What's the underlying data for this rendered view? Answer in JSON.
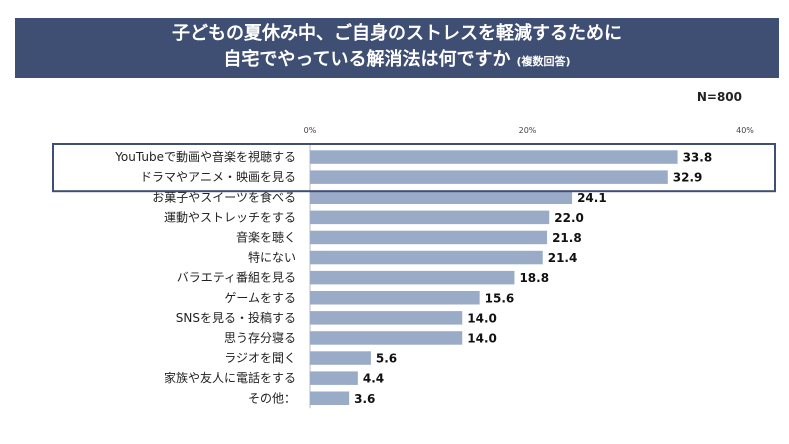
{
  "title": {
    "line1": "子どもの夏休み中、ご自身のストレスを軽減するために",
    "line2": "自宅でやっている解消法は何ですか",
    "note": "(複数回答)"
  },
  "sample": "N=800",
  "colors": {
    "bar": "#9aabc8",
    "header": "#3f4e73",
    "highlight": "#3f4e73"
  },
  "chart_data": {
    "type": "bar",
    "orientation": "horizontal",
    "xlim": [
      0,
      40
    ],
    "ticks": [
      "0%",
      "20%",
      "40%"
    ],
    "grid": false,
    "categories": [
      "YouTubeで動画や音楽を視聴する",
      "ドラマやアニメ・映画を見る",
      "お菓子やスイーツを食べる",
      "運動やストレッチをする",
      "音楽を聴く",
      "特にない",
      "バラエティ番組を見る",
      "ゲームをする",
      "SNSを見る・投稿する",
      "思う存分寝る",
      "ラジオを聞く",
      "家族や友人に電話をする",
      "その他："
    ],
    "values": [
      33.8,
      32.9,
      24.1,
      22.0,
      21.8,
      21.4,
      18.8,
      15.6,
      14.0,
      14.0,
      5.6,
      4.4,
      3.6
    ],
    "value_labels": [
      "33.8",
      "32.9",
      "24.1",
      "22.0",
      "21.8",
      "21.4",
      "18.8",
      "15.6",
      "14.0",
      "14.0",
      "5.6",
      "4.4",
      "3.6"
    ],
    "highlighted": [
      "YouTubeで動画や音楽を視聴する",
      "ドラマやアニメ・映画を見る"
    ]
  }
}
